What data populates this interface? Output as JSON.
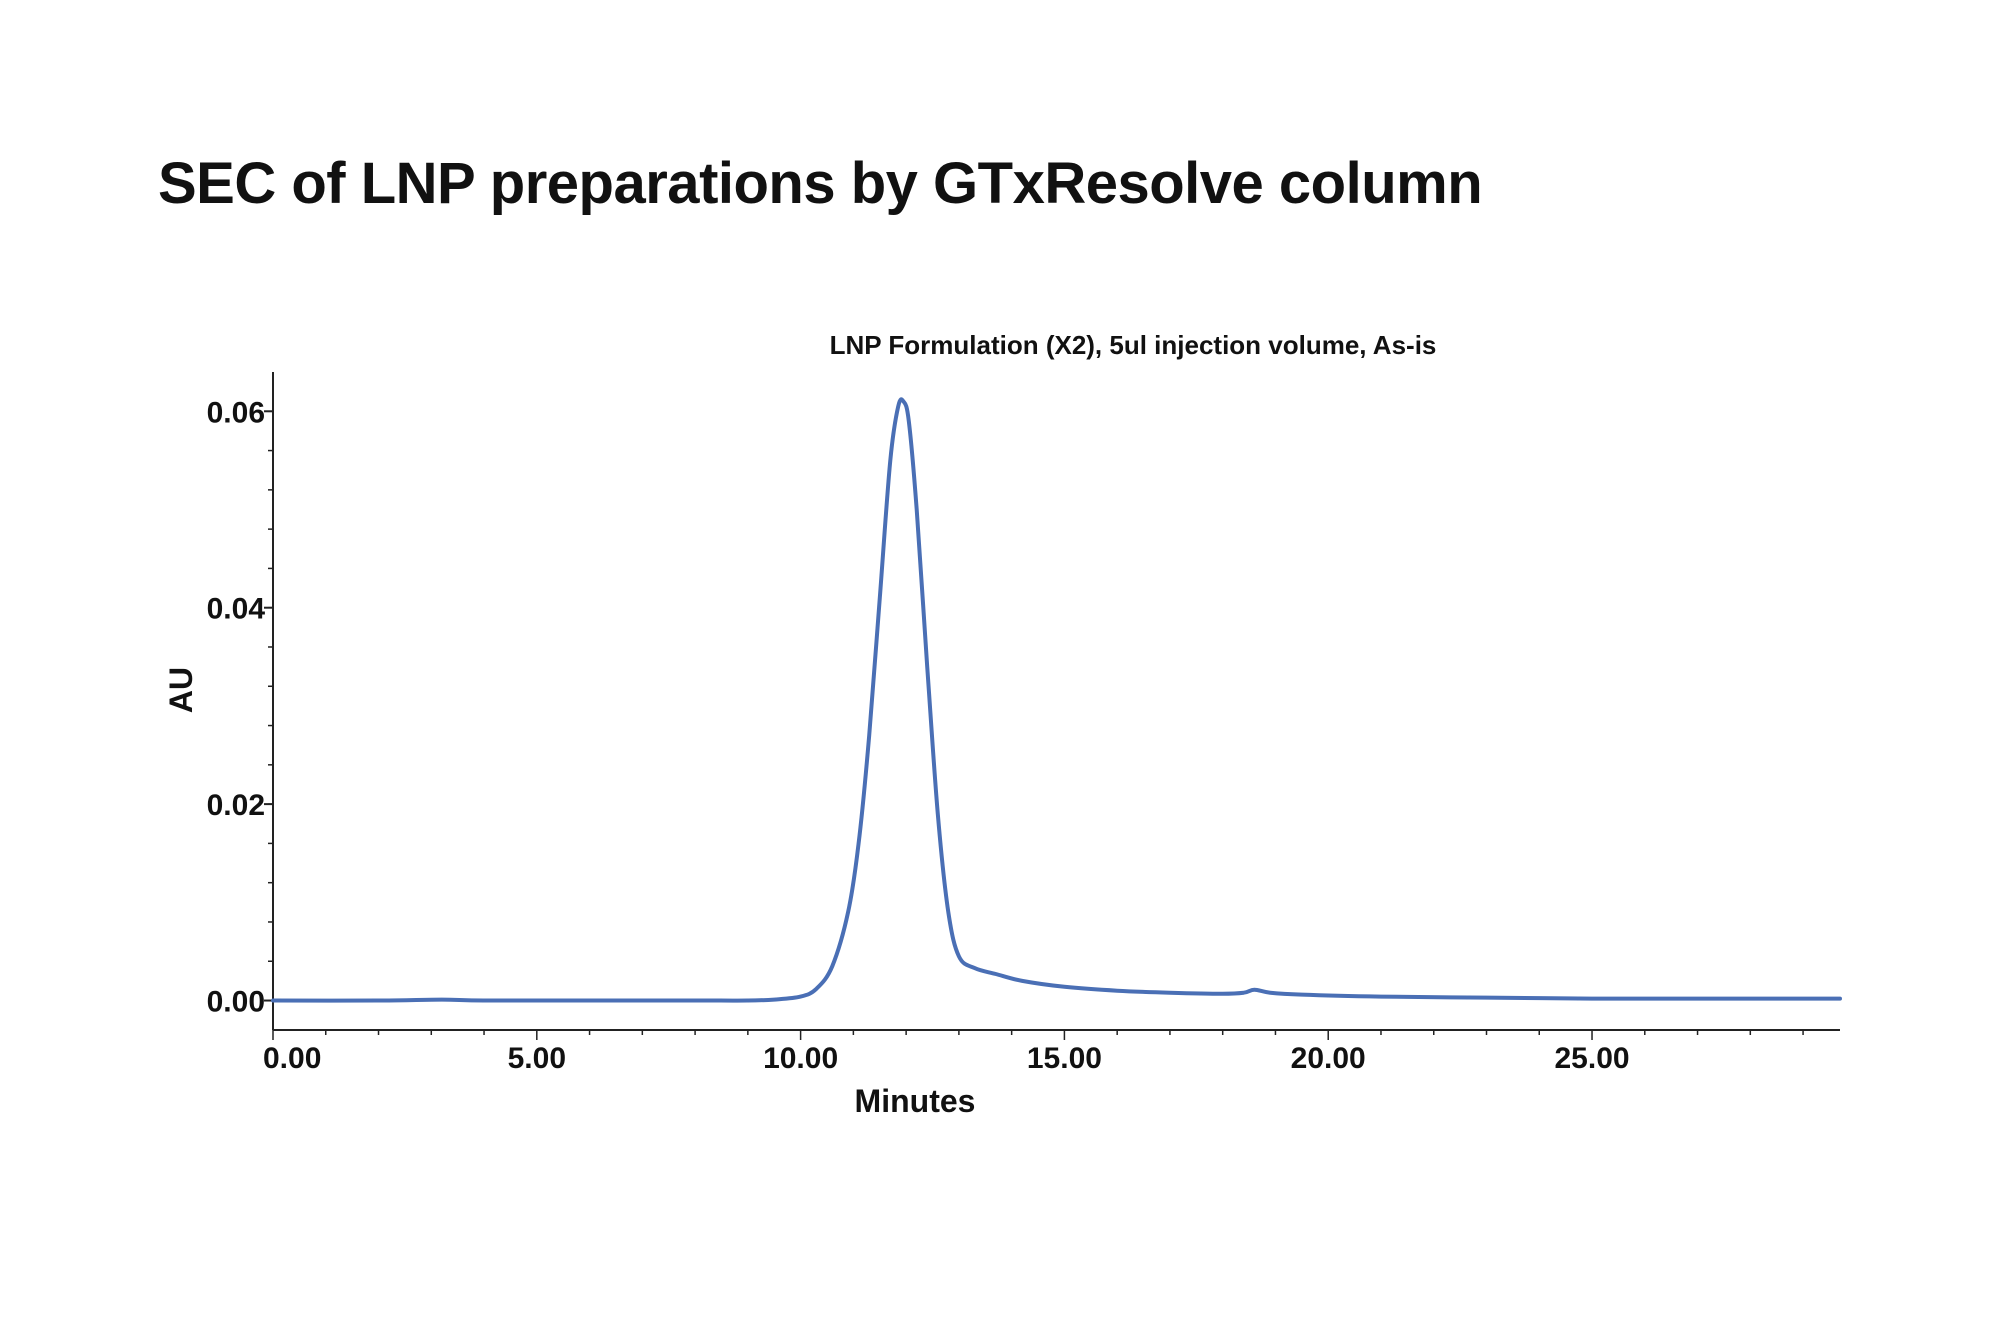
{
  "page": {
    "title": "SEC of LNP preparations by GTxResolve column"
  },
  "chart_data": {
    "type": "line",
    "title": "LNP Formulation (X2), 5ul injection volume, As-is",
    "xlabel": "Minutes",
    "ylabel": "AU",
    "xlim": [
      0,
      29.7
    ],
    "ylim": [
      -0.003,
      0.064
    ],
    "x_ticks": [
      "0.00",
      "5.00",
      "10.00",
      "15.00",
      "20.00",
      "25.00"
    ],
    "x_tick_values": [
      0,
      5,
      10,
      15,
      20,
      25
    ],
    "y_ticks": [
      "0.00",
      "0.02",
      "0.04",
      "0.06"
    ],
    "y_tick_values": [
      0,
      0.02,
      0.04,
      0.06
    ],
    "line_color": "#4a6fb5",
    "grid": false,
    "series": [
      {
        "x": [
          0,
          2,
          3.2,
          4,
          6,
          8,
          9,
          9.5,
          10,
          10.3,
          10.6,
          10.9,
          11.1,
          11.3,
          11.5,
          11.7,
          11.85,
          11.95,
          12.05,
          12.2,
          12.4,
          12.6,
          12.8,
          13.0,
          13.3,
          13.7,
          14.2,
          15,
          16,
          17,
          18,
          18.4,
          18.6,
          18.9,
          19.5,
          21,
          23,
          25,
          27,
          29.7
        ],
        "y": [
          0,
          0,
          0.0001,
          0,
          0,
          0,
          0,
          0.0001,
          0.0004,
          0.0012,
          0.0035,
          0.009,
          0.016,
          0.027,
          0.041,
          0.055,
          0.0605,
          0.061,
          0.059,
          0.05,
          0.034,
          0.019,
          0.009,
          0.0045,
          0.0033,
          0.0027,
          0.002,
          0.0014,
          0.001,
          0.0008,
          0.0007,
          0.0008,
          0.0011,
          0.0008,
          0.0006,
          0.0004,
          0.0003,
          0.0002,
          0.0002,
          0.0002
        ]
      }
    ]
  }
}
